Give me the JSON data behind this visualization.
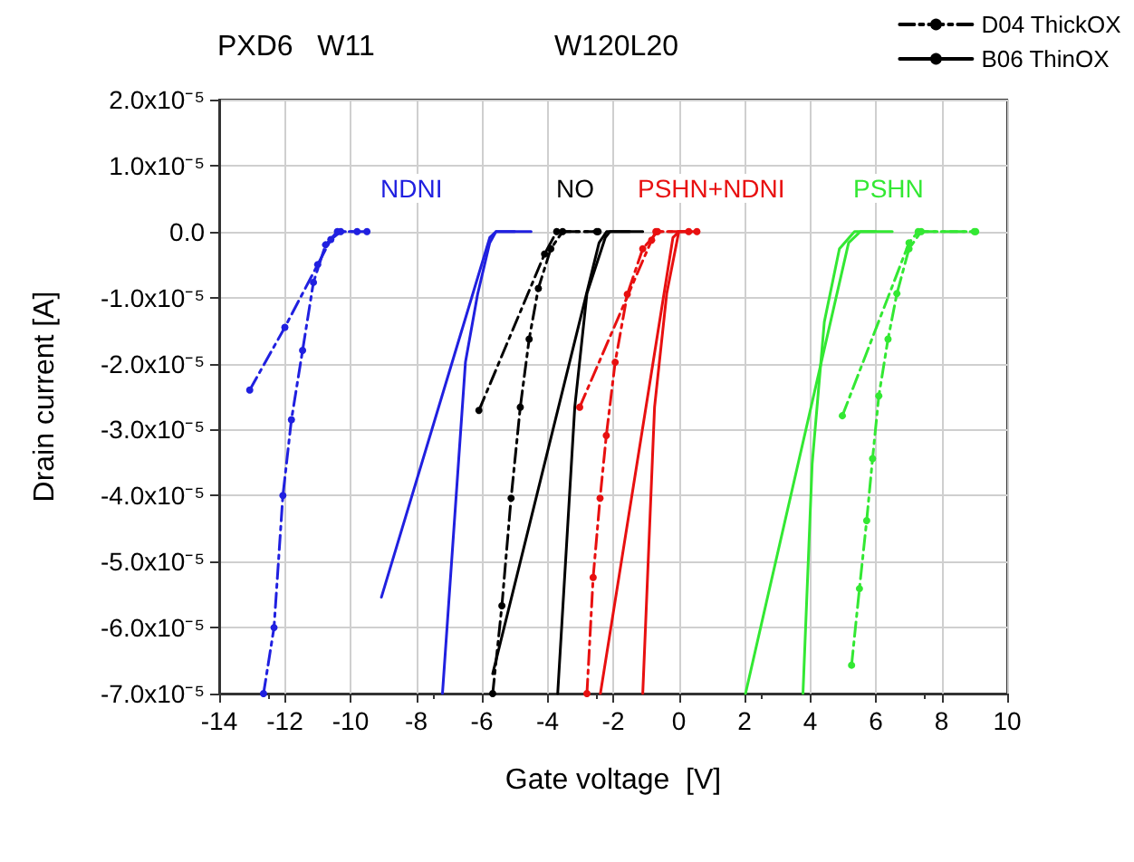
{
  "chart_data": {
    "type": "line",
    "title": "PXD6   W11",
    "subtitle": "W120L20",
    "xlabel": "Gate voltage  [V]",
    "ylabel": "Drain current [A]",
    "xlim": [
      -14,
      10
    ],
    "xticks": [
      -14,
      -12,
      -10,
      -8,
      -6,
      -4,
      -2,
      0,
      2,
      4,
      6,
      8,
      10
    ],
    "ylim": [
      -7e-05,
      2e-05
    ],
    "yticks": [
      {
        "value": -7e-05,
        "label": "-7.0x10⁻⁵"
      },
      {
        "value": -6e-05,
        "label": "-6.0x10⁻⁵"
      },
      {
        "value": -5e-05,
        "label": "-5.0x10⁻⁵"
      },
      {
        "value": -4e-05,
        "label": "-4.0x10⁻⁵"
      },
      {
        "value": -3e-05,
        "label": "-3.0x10⁻⁵"
      },
      {
        "value": -2e-05,
        "label": "-2.0x10⁻⁵"
      },
      {
        "value": -1e-05,
        "label": "-1.0x10⁻⁵"
      },
      {
        "value": 0,
        "label": "0.0"
      },
      {
        "value": 1e-05,
        "label": "1.0x10⁻⁵"
      },
      {
        "value": 2e-05,
        "label": "2.0x10⁻⁵"
      }
    ],
    "grid": true,
    "legend": "top right",
    "annotations": [
      "NDNI",
      "NO",
      "PSHN+NDNI",
      "PSHN"
    ],
    "series": [
      {
        "color": "#2020e0",
        "marker": "circle",
        "line_style": "dashed",
        "x": [
          -13.07,
          -12.0,
          -11.0,
          -10.6,
          -10.3,
          -9.5
        ],
        "values": [
          -2.4e-05,
          -1.45e-05,
          -5e-06,
          -1.2e-06,
          0,
          0
        ]
      },
      {
        "color": "#2020e0",
        "marker": "circle",
        "line_style": "dashed",
        "x": [
          -12.65,
          -12.33,
          -12.06,
          -11.8,
          -11.46,
          -11.13,
          -10.76,
          -10.4,
          -9.8
        ],
        "values": [
          -7e-05,
          -6e-05,
          -4e-05,
          -2.85e-05,
          -1.8e-05,
          -7.7e-06,
          -2e-06,
          0,
          0
        ]
      },
      {
        "color": "#2020e0",
        "marker": "none",
        "line_style": "solid",
        "x": [
          -9.06,
          -5.76,
          -5.57,
          -4.5
        ],
        "values": [
          -5.54e-05,
          -9e-07,
          0,
          0
        ]
      },
      {
        "color": "#2020e0",
        "marker": "none",
        "line_style": "solid",
        "x": [
          -7.2,
          -6.5,
          -6.13,
          -5.76,
          -5.57,
          -5.0
        ],
        "values": [
          -7e-05,
          -1.98e-05,
          -9.5e-06,
          -1.7e-06,
          0,
          0
        ]
      },
      {
        "name": "D04 ThickOX",
        "color": "#000000",
        "marker": "circle",
        "line_style": "dashed",
        "x": [
          -6.09,
          -4.09,
          -3.72,
          -2.46
        ],
        "values": [
          -2.71e-05,
          -3.4e-06,
          0,
          0
        ]
      },
      {
        "color": "#000000",
        "marker": "circle",
        "line_style": "dashed",
        "x": [
          -5.67,
          -5.39,
          -5.11,
          -4.83,
          -4.56,
          -4.28,
          -3.9,
          -3.54,
          -2.5
        ],
        "values": [
          -7e-05,
          -5.67e-05,
          -4.04e-05,
          -2.66e-05,
          -1.63e-05,
          -8.6e-06,
          -2.6e-06,
          0,
          0
        ]
      },
      {
        "name": "B06 ThinOX",
        "color": "#000000",
        "marker": "none",
        "line_style": "solid",
        "x": [
          -5.67,
          -2.43,
          -2.2,
          -1.1
        ],
        "values": [
          -6.7e-05,
          -1.7e-06,
          0,
          0
        ]
      },
      {
        "color": "#000000",
        "marker": "none",
        "line_style": "solid",
        "x": [
          -3.69,
          -3.17,
          -2.8,
          -2.24,
          -2.1,
          -1.5
        ],
        "values": [
          -7e-05,
          -2.66e-05,
          -9.4e-06,
          -9e-07,
          0,
          0
        ]
      },
      {
        "color": "#e81010",
        "marker": "circle",
        "line_style": "dashed",
        "x": [
          -3.02,
          -0.83,
          -0.7,
          0.55
        ],
        "values": [
          -2.66e-05,
          -1.3e-06,
          0,
          0
        ]
      },
      {
        "color": "#e81010",
        "marker": "circle",
        "line_style": "dashed",
        "x": [
          -2.8,
          -2.61,
          -2.4,
          -2.21,
          -1.94,
          -1.57,
          -1.1,
          -0.65,
          0.3
        ],
        "values": [
          -7e-05,
          -5.24e-05,
          -4.04e-05,
          -3.09e-05,
          -1.98e-05,
          -9.5e-06,
          -2.6e-06,
          0,
          0
        ]
      },
      {
        "color": "#e81010",
        "marker": "none",
        "line_style": "solid",
        "x": [
          -2.39,
          -0.18,
          0,
          0.5
        ],
        "values": [
          -7e-05,
          -9e-07,
          0,
          0
        ]
      },
      {
        "color": "#e81010",
        "marker": "none",
        "line_style": "solid",
        "x": [
          -1.1,
          -0.74,
          -0.37,
          0,
          0.3
        ],
        "values": [
          -7e-05,
          -2.66e-05,
          -9.4e-06,
          0,
          0
        ]
      },
      {
        "color": "#33e833",
        "marker": "none",
        "line_style": "solid",
        "x": [
          2.03,
          5.17,
          5.53,
          6.5
        ],
        "values": [
          -7e-05,
          -1.7e-06,
          0,
          0
        ]
      },
      {
        "color": "#33e833",
        "marker": "none",
        "line_style": "solid",
        "x": [
          3.78,
          4.06,
          4.43,
          4.89,
          5.35,
          6.0
        ],
        "values": [
          -7e-05,
          -3.52e-05,
          -1.37e-05,
          -2.6e-06,
          0,
          0
        ]
      },
      {
        "color": "#33e833",
        "marker": "circle",
        "line_style": "dashed",
        "x": [
          4.98,
          7.01,
          7.29,
          9.04
        ],
        "values": [
          -2.79e-05,
          -1.7e-06,
          0,
          0
        ]
      },
      {
        "color": "#33e833",
        "marker": "circle",
        "line_style": "dashed",
        "x": [
          5.26,
          5.5,
          5.72,
          5.9,
          6.09,
          6.37,
          6.64,
          7.01,
          7.38,
          9.0
        ],
        "values": [
          -6.57e-05,
          -5.41e-05,
          -4.38e-05,
          -3.44e-05,
          -2.49e-05,
          -1.63e-05,
          -9.4e-06,
          -2.6e-06,
          0,
          0
        ]
      }
    ]
  }
}
